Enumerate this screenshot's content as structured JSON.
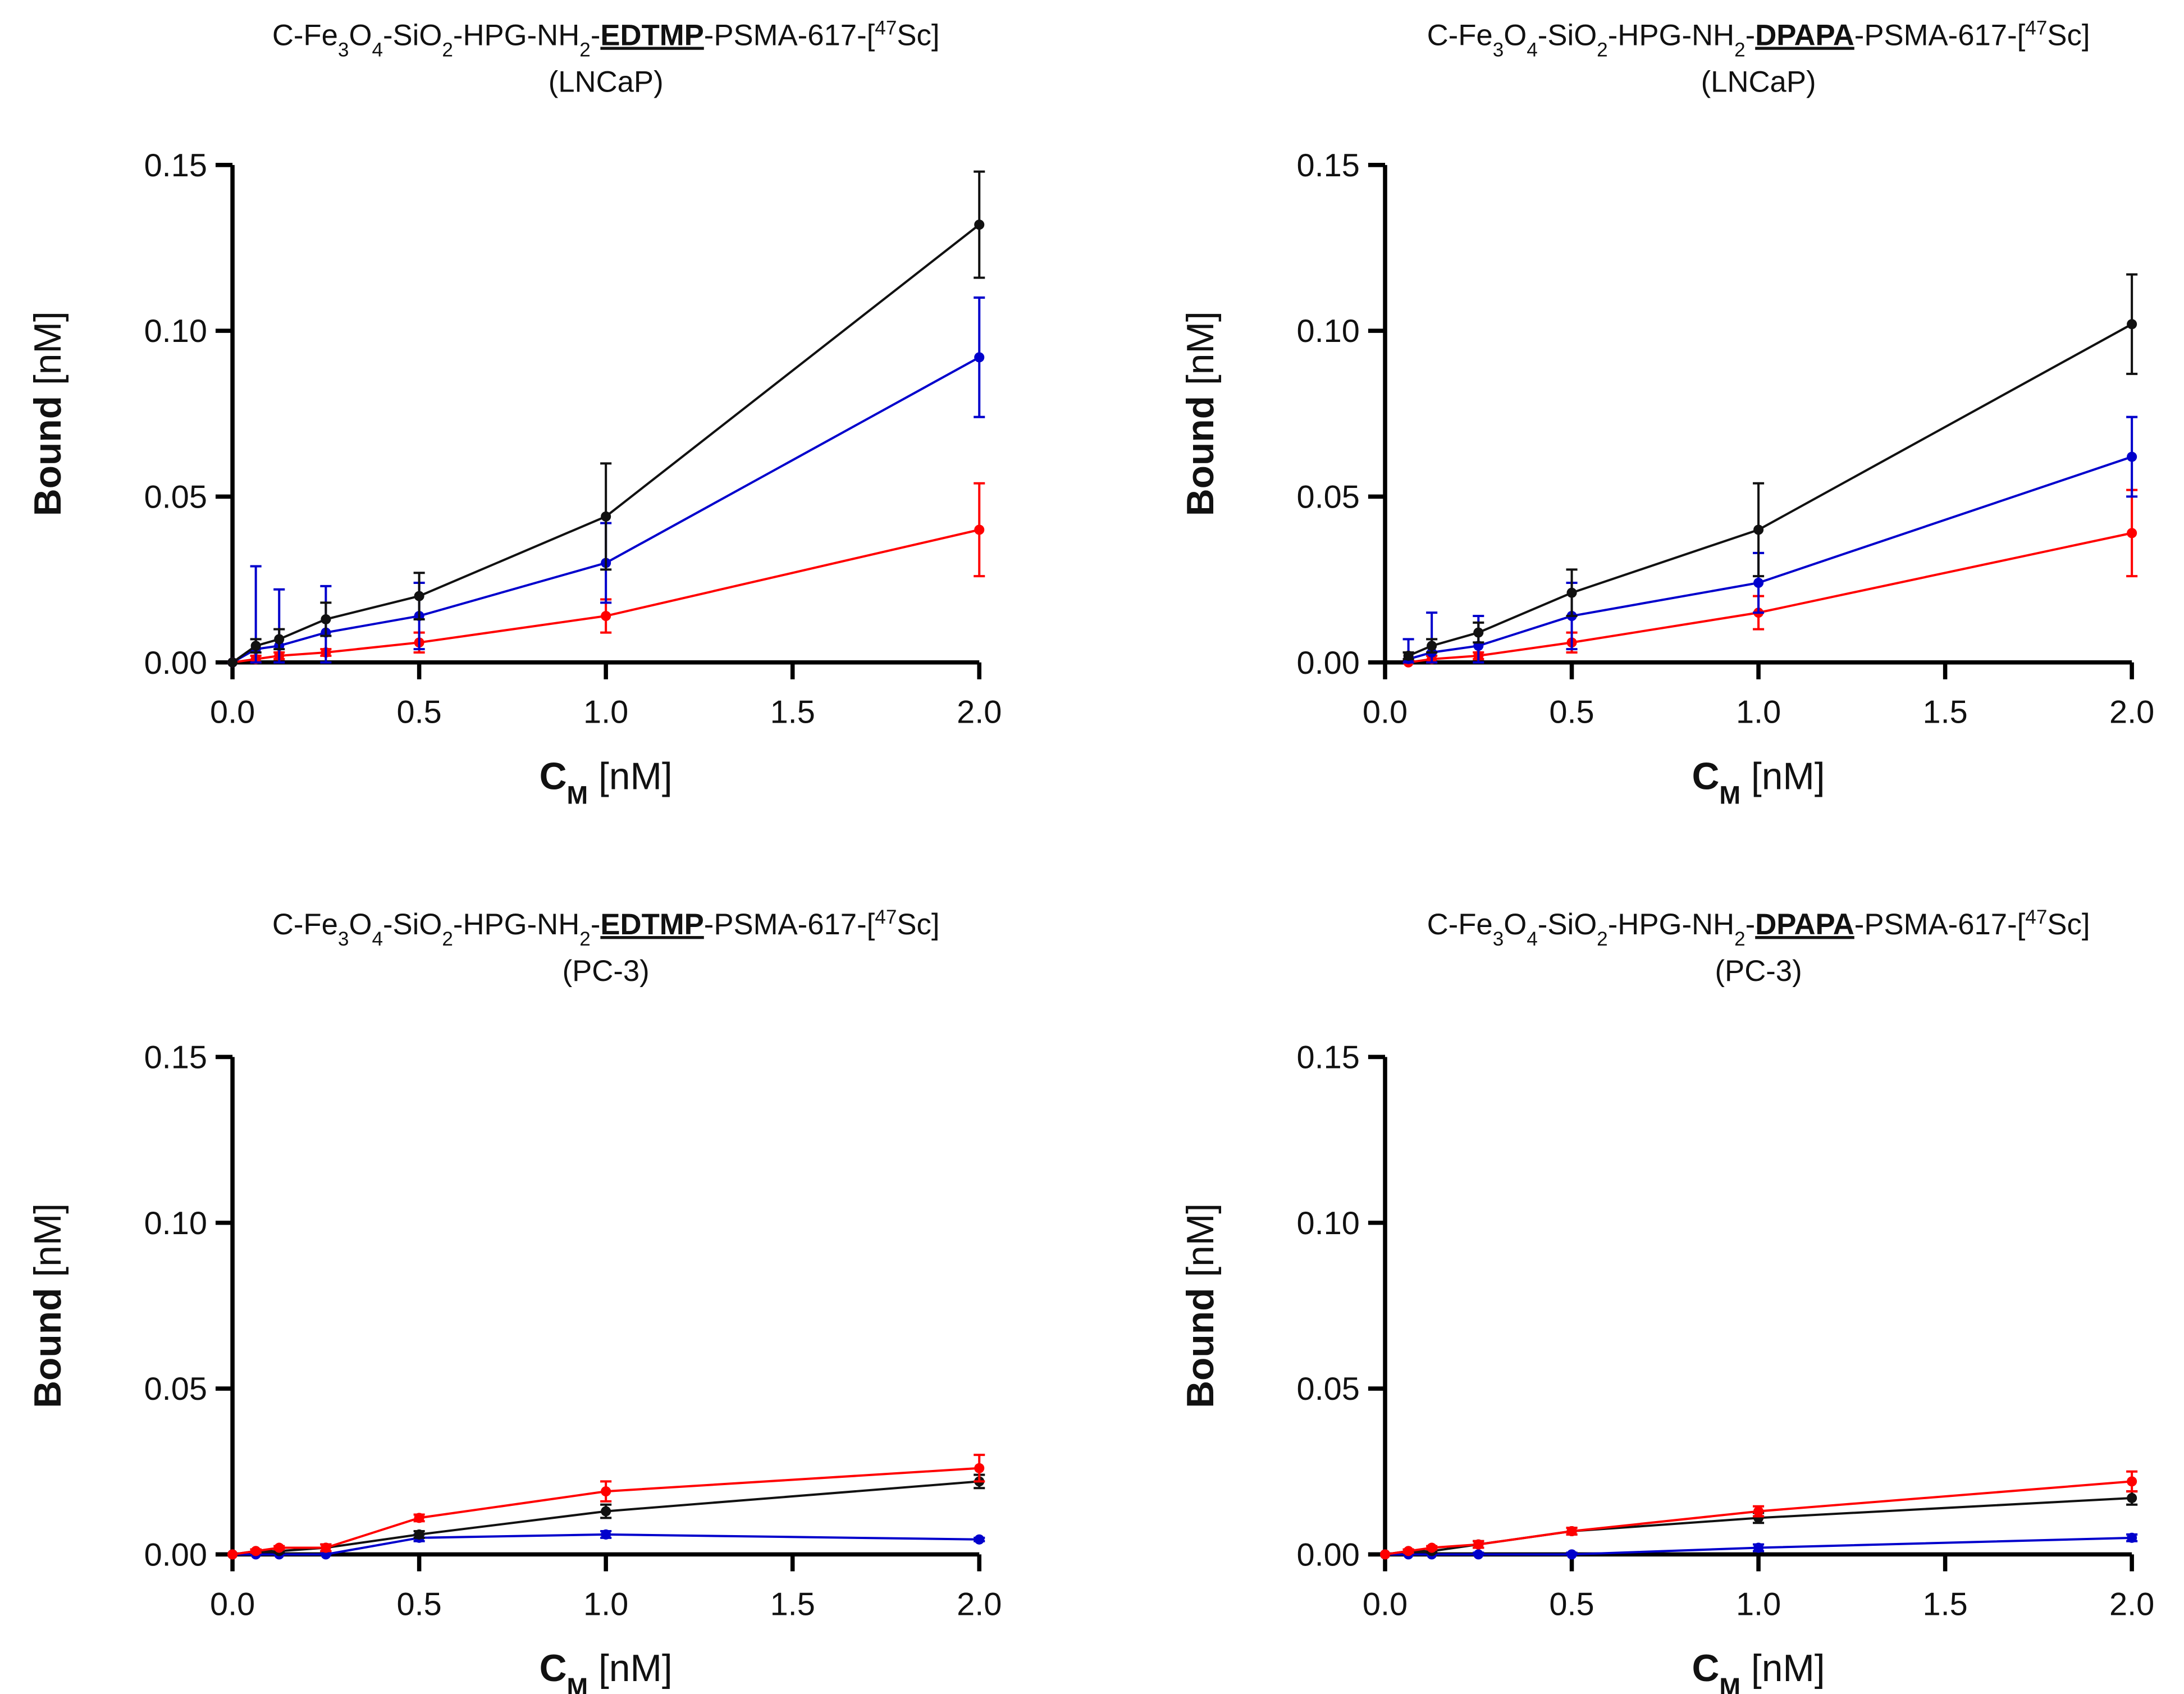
{
  "colors": {
    "black": "#111111",
    "blue": "#0000cc",
    "red": "#ff0000"
  },
  "chart_data": [
    {
      "type": "line",
      "title_parts": [
        "C-Fe",
        "3",
        "O",
        "4",
        "-SiO",
        "2",
        "-HPG-NH",
        "2",
        "-",
        "EDTMP",
        "-PSMA-617-[",
        "47",
        "Sc]"
      ],
      "subtitle": "(LNCaP)",
      "xlabel_main": "C",
      "xlabel_sub": "M",
      "xlabel_rest": " [nM]",
      "ylabel": "Bound [nM]",
      "xlim": [
        0,
        2
      ],
      "ylim": [
        0,
        0.15
      ],
      "xticks": [
        "0.0",
        "0.5",
        "1.0",
        "1.5",
        "2.0"
      ],
      "yticks": [
        "0.00",
        "0.05",
        "0.10",
        "0.15"
      ],
      "series": [
        {
          "color": "red",
          "x": [
            0,
            0.0625,
            0.125,
            0.25,
            0.5,
            1,
            2
          ],
          "y": [
            0,
            0.001,
            0.002,
            0.003,
            0.006,
            0.014,
            0.04
          ],
          "err": [
            0,
            0.001,
            0.001,
            0.001,
            0.003,
            0.005,
            0.014
          ]
        },
        {
          "color": "blue",
          "x": [
            0,
            0.0625,
            0.125,
            0.25,
            0.5,
            1,
            2
          ],
          "y": [
            0,
            0.004,
            0.005,
            0.009,
            0.014,
            0.03,
            0.092
          ],
          "err": [
            0,
            0.025,
            0.017,
            0.014,
            0.01,
            0.012,
            0.018
          ]
        },
        {
          "color": "black",
          "x": [
            0,
            0.0625,
            0.125,
            0.25,
            0.5,
            1,
            2
          ],
          "y": [
            0,
            0.005,
            0.007,
            0.013,
            0.02,
            0.044,
            0.132
          ],
          "err": [
            0,
            0.002,
            0.003,
            0.005,
            0.007,
            0.016,
            0.016
          ]
        }
      ]
    },
    {
      "type": "line",
      "title_parts": [
        "C-Fe",
        "3",
        "O",
        "4",
        "-SiO",
        "2",
        "-HPG-NH",
        "2",
        "-",
        "DPAPA",
        "-PSMA-617-[",
        "47",
        "Sc]"
      ],
      "subtitle": "(LNCaP)",
      "xlabel_main": "C",
      "xlabel_sub": "M",
      "xlabel_rest": " [nM]",
      "ylabel": "Bound [nM]",
      "xlim": [
        0,
        2
      ],
      "ylim": [
        0,
        0.15
      ],
      "xticks": [
        "0.0",
        "0.5",
        "1.0",
        "1.5",
        "2.0"
      ],
      "yticks": [
        "0.00",
        "0.05",
        "0.10",
        "0.15"
      ],
      "series": [
        {
          "color": "red",
          "x": [
            0.0625,
            0.125,
            0.25,
            0.5,
            1,
            2
          ],
          "y": [
            0.0,
            0.001,
            0.002,
            0.006,
            0.015,
            0.039
          ],
          "err": [
            0.001,
            0.001,
            0.001,
            0.003,
            0.005,
            0.013
          ]
        },
        {
          "color": "blue",
          "x": [
            0.0625,
            0.125,
            0.25,
            0.5,
            1,
            2
          ],
          "y": [
            0.001,
            0.003,
            0.005,
            0.014,
            0.024,
            0.062
          ],
          "err": [
            0.006,
            0.012,
            0.009,
            0.01,
            0.009,
            0.012
          ]
        },
        {
          "color": "black",
          "x": [
            0.0625,
            0.125,
            0.25,
            0.5,
            1,
            2
          ],
          "y": [
            0.002,
            0.005,
            0.009,
            0.021,
            0.04,
            0.102
          ],
          "err": [
            0.001,
            0.002,
            0.003,
            0.007,
            0.014,
            0.015
          ]
        }
      ]
    },
    {
      "type": "line",
      "title_parts": [
        "C-Fe",
        "3",
        "O",
        "4",
        "-SiO",
        "2",
        "-HPG-NH",
        "2",
        "-",
        "EDTMP",
        "-PSMA-617-[",
        "47",
        "Sc]"
      ],
      "subtitle": "(PC-3)",
      "xlabel_main": "C",
      "xlabel_sub": "M",
      "xlabel_rest": " [nM]",
      "ylabel": "Bound [nM]",
      "xlim": [
        0,
        2
      ],
      "ylim": [
        0,
        0.15
      ],
      "xticks": [
        "0.0",
        "0.5",
        "1.0",
        "1.5",
        "2.0"
      ],
      "yticks": [
        "0.00",
        "0.05",
        "0.10",
        "0.15"
      ],
      "series": [
        {
          "color": "blue",
          "x": [
            0,
            0.0625,
            0.125,
            0.25,
            0.5,
            1,
            2
          ],
          "y": [
            0,
            0.0,
            0.0,
            0.0,
            0.005,
            0.006,
            0.0045
          ],
          "err": [
            0,
            0.0005,
            0.0005,
            0.0005,
            0.001,
            0.001,
            0.0005
          ]
        },
        {
          "color": "black",
          "x": [
            0,
            0.0625,
            0.125,
            0.25,
            0.5,
            1,
            2
          ],
          "y": [
            0,
            0.001,
            0.001,
            0.002,
            0.006,
            0.013,
            0.022
          ],
          "err": [
            0,
            0.0005,
            0.0005,
            0.001,
            0.001,
            0.002,
            0.002
          ]
        },
        {
          "color": "red",
          "x": [
            0,
            0.0625,
            0.125,
            0.25,
            0.5,
            1,
            2
          ],
          "y": [
            0,
            0.001,
            0.002,
            0.002,
            0.011,
            0.019,
            0.026
          ],
          "err": [
            0,
            0.0005,
            0.0005,
            0.001,
            0.001,
            0.003,
            0.004
          ]
        }
      ]
    },
    {
      "type": "line",
      "title_parts": [
        "C-Fe",
        "3",
        "O",
        "4",
        "-SiO",
        "2",
        "-HPG-NH",
        "2",
        "-",
        "DPAPA",
        "-PSMA-617-[",
        "47",
        "Sc]"
      ],
      "subtitle": "(PC-3)",
      "xlabel_main": "C",
      "xlabel_sub": "M",
      "xlabel_rest": " [nM]",
      "ylabel": "Bound [nM]",
      "xlim": [
        0,
        2
      ],
      "ylim": [
        0,
        0.15
      ],
      "xticks": [
        "0.0",
        "0.5",
        "1.0",
        "1.5",
        "2.0"
      ],
      "yticks": [
        "0.00",
        "0.05",
        "0.10",
        "0.15"
      ],
      "series": [
        {
          "color": "blue",
          "x": [
            0,
            0.0625,
            0.125,
            0.25,
            0.5,
            1,
            2
          ],
          "y": [
            0,
            0.0,
            0.0,
            0.0,
            0.0,
            0.002,
            0.005
          ],
          "err": [
            0,
            0.0005,
            0.0005,
            0.0005,
            0.0005,
            0.001,
            0.001
          ]
        },
        {
          "color": "black",
          "x": [
            0,
            0.0625,
            0.125,
            0.25,
            0.5,
            1,
            2
          ],
          "y": [
            0,
            0.001,
            0.001,
            0.003,
            0.007,
            0.011,
            0.017
          ],
          "err": [
            0,
            0.0005,
            0.0005,
            0.001,
            0.001,
            0.0015,
            0.002
          ]
        },
        {
          "color": "red",
          "x": [
            0,
            0.0625,
            0.125,
            0.25,
            0.5,
            1,
            2
          ],
          "y": [
            0,
            0.001,
            0.002,
            0.003,
            0.007,
            0.013,
            0.022
          ],
          "err": [
            0,
            0.0005,
            0.0005,
            0.001,
            0.001,
            0.0015,
            0.003
          ]
        }
      ]
    }
  ]
}
